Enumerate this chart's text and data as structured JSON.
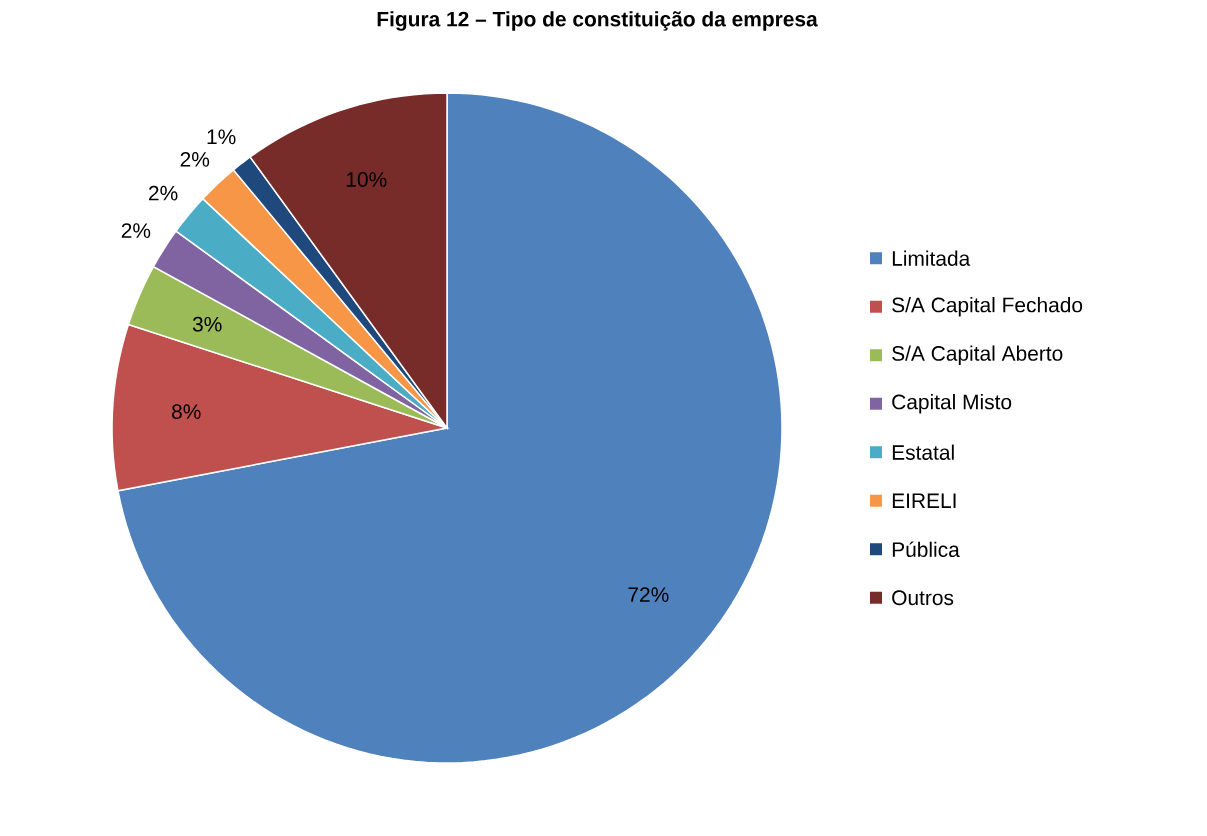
{
  "chart_data": {
    "type": "pie",
    "title": "Figura 12 – Tipo de constituição da empresa",
    "categories": [
      "Limitada",
      "S/A Capital Fechado",
      "S/A Capital Aberto",
      "Capital Misto",
      "Estatal",
      "EIRELI",
      "Pública",
      "Outros"
    ],
    "values": [
      72,
      8,
      3,
      2,
      2,
      2,
      1,
      10
    ],
    "value_labels": [
      "72%",
      "8%",
      "3%",
      "2%",
      "2%",
      "2%",
      "1%",
      "10%"
    ],
    "colors": [
      "#4f81bd",
      "#c0504d",
      "#9bbb59",
      "#8064a2",
      "#4bacc6",
      "#f79646",
      "#1f497d",
      "#772c2a"
    ],
    "legend": "right"
  }
}
